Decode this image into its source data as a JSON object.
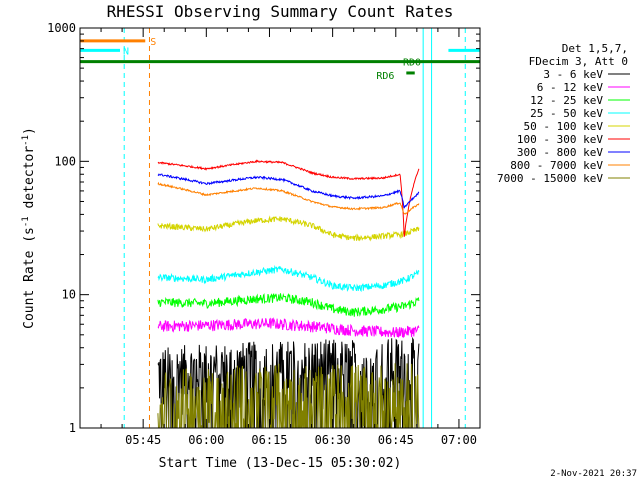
{
  "chart_data": {
    "type": "line",
    "title": "RHESSI Observing Summary Count Rates",
    "xlabel": "Start Time (13-Dec-15 05:30:02)",
    "ylabel": "Count Rate (s⁻¹ detector⁻¹)",
    "ylabel_parts": {
      "main": "Count Rate (s",
      "sup1": "-1",
      "mid": " detector",
      "sup2": "-1",
      "end": ")"
    },
    "yscale": "log",
    "ylim": [
      1,
      1000
    ],
    "xlim_minutes": [
      0,
      95
    ],
    "x_ticks": [
      {
        "label": "05:45",
        "minutes": 15
      },
      {
        "label": "06:00",
        "minutes": 30
      },
      {
        "label": "06:15",
        "minutes": 45
      },
      {
        "label": "06:30",
        "minutes": 60
      },
      {
        "label": "06:45",
        "minutes": 75
      },
      {
        "label": "07:00",
        "minutes": 90
      }
    ],
    "y_ticks": [
      {
        "label": "1",
        "value": 1
      },
      {
        "label": "10",
        "value": 10
      },
      {
        "label": "100",
        "value": 100
      },
      {
        "label": "1000",
        "value": 1000
      }
    ],
    "legend_header": [
      "Det 1,5,7,",
      "FDecim 3, Att 0"
    ],
    "series": [
      {
        "name": "3 - 6 keV",
        "color": "#000000",
        "x": [
          18.5,
          30,
          45,
          55,
          65,
          75,
          80.5
        ],
        "values": [
          2.6,
          2.8,
          2.9,
          3.0,
          3.0,
          3.1,
          3.0
        ],
        "noise": 0.55,
        "floor": 1.0
      },
      {
        "name": "6 - 12 keV",
        "color": "#ff00ff",
        "x": [
          18.5,
          30,
          45,
          55,
          65,
          75,
          80.5
        ],
        "values": [
          5.8,
          5.9,
          6.1,
          5.8,
          5.4,
          5.2,
          5.4
        ],
        "noise": 0.1
      },
      {
        "name": "12 - 25 keV",
        "color": "#00ff00",
        "x": [
          18.5,
          30,
          42,
          48,
          55,
          60,
          65,
          72,
          77,
          80.5
        ],
        "values": [
          8.8,
          8.6,
          9.3,
          9.5,
          8.8,
          7.8,
          7.4,
          7.8,
          8.2,
          9.0
        ],
        "noise": 0.08
      },
      {
        "name": "25 - 50 keV",
        "color": "#00ffff",
        "x": [
          18.5,
          30,
          42,
          48,
          55,
          60,
          65,
          72,
          77,
          80.5
        ],
        "values": [
          13.5,
          13.0,
          14.8,
          15.5,
          13.5,
          11.7,
          11.2,
          11.7,
          12.8,
          14.5
        ],
        "noise": 0.06
      },
      {
        "name": "50 - 100 keV",
        "color": "#d4d400",
        "x": [
          18.5,
          30,
          42,
          48,
          55,
          60,
          65,
          72,
          77,
          80.5
        ],
        "values": [
          33,
          31,
          36,
          37,
          33,
          28,
          26.5,
          27.5,
          28.5,
          31
        ],
        "noise": 0.05
      },
      {
        "name": "100 - 300 keV",
        "color": "#ff0000",
        "x": [
          18.5,
          30,
          42,
          48,
          55,
          60,
          65,
          72,
          76,
          77,
          80.5
        ],
        "values": [
          98,
          88,
          100,
          98,
          82,
          76,
          74,
          75,
          80,
          27,
          88
        ],
        "noise": 0.015
      },
      {
        "name": "300 - 800 keV",
        "color": "#0000ff",
        "x": [
          18.5,
          30,
          42,
          48,
          55,
          60,
          65,
          72,
          76,
          77,
          80.5
        ],
        "values": [
          80,
          68,
          76,
          73,
          60,
          55,
          53,
          55,
          60,
          45,
          58
        ],
        "noise": 0.018
      },
      {
        "name": "800 - 7000 keV",
        "color": "#ff8000",
        "x": [
          18.5,
          30,
          42,
          48,
          55,
          60,
          65,
          72,
          76,
          77,
          80.5
        ],
        "values": [
          68,
          56,
          63,
          60,
          50,
          45.5,
          44,
          45,
          49,
          40,
          48
        ],
        "noise": 0.015
      },
      {
        "name": "7000 - 15000 keV",
        "color": "#808000",
        "x": [
          18.5,
          30,
          45,
          55,
          65,
          75,
          80.5
        ],
        "values": [
          1.6,
          1.7,
          1.8,
          1.8,
          1.8,
          1.8,
          1.8
        ],
        "noise": 0.7,
        "floor": 1.0
      }
    ],
    "flag_bars": [
      {
        "label": "S",
        "color": "#ff8000",
        "x0": 0,
        "x1": 15.5,
        "value": 800
      },
      {
        "label": "N",
        "color": "#00ffff",
        "x0": 0,
        "x1": 9.5,
        "value": 680
      },
      {
        "label": "N",
        "color": "#00ffff",
        "x0": 87.5,
        "x1": 95,
        "value": 680
      },
      {
        "label": "RD0",
        "color": "#008000",
        "x0": 0,
        "x1": 95,
        "value": 560
      },
      {
        "label": "RD6",
        "color": "#008000",
        "x0": 77.5,
        "x1": 79.5,
        "value": 460
      }
    ],
    "vertical_markers": [
      {
        "minutes": 0,
        "color": "#00ffff",
        "style": "solid"
      },
      {
        "minutes": 10.5,
        "color": "#00ffff",
        "style": "dashed"
      },
      {
        "minutes": 16.5,
        "color": "#ff8000",
        "style": "dashed"
      },
      {
        "minutes": 81.5,
        "color": "#00ffff",
        "style": "solid"
      },
      {
        "minutes": 83.5,
        "color": "#00ffff",
        "style": "solid"
      },
      {
        "minutes": 91.5,
        "color": "#00ffff",
        "style": "dashed"
      }
    ],
    "grid": false,
    "legend_placement": "right"
  },
  "footer_date": "2-Nov-2021 20:37"
}
